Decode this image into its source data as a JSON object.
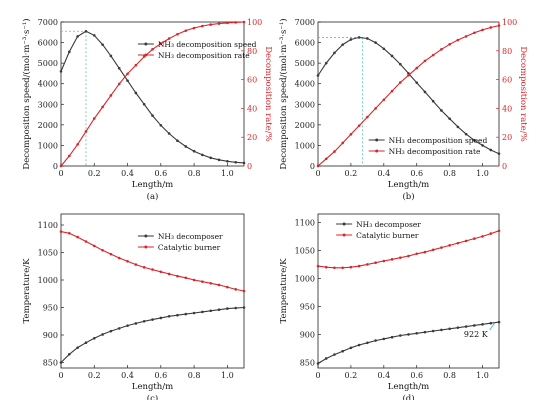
{
  "colors": {
    "black_series": "#3a3a3a",
    "red_series": "#d9262b",
    "dash_marker": "#56c1b7"
  },
  "chart_data": [
    {
      "id": "a",
      "type": "line",
      "panel_label": "(a)",
      "xlabel": "Length/m",
      "ylabel_left": "Decomposition speed/(mol·m⁻³·s⁻¹)",
      "ylabel_right": "Decomposition rate/%",
      "xlim": [
        0,
        1.1
      ],
      "ylim_left": [
        0,
        7000
      ],
      "ylim_right": [
        0,
        100
      ],
      "xticks": [
        "0",
        "0.2",
        "0.4",
        "0.6",
        "0.8",
        "1.0"
      ],
      "yticks_left": [
        "0",
        "1000",
        "2000",
        "3000",
        "4000",
        "5000",
        "6000",
        "7000"
      ],
      "yticks_right": [
        "0",
        "20",
        "40",
        "60",
        "80",
        "100"
      ],
      "legend_position": "upper-right",
      "peak_marker_x": 0.15,
      "series": [
        {
          "name": "NH₃ decomposition speed",
          "axis": "left",
          "color": "black",
          "x": [
            0,
            0.05,
            0.1,
            0.15,
            0.2,
            0.25,
            0.3,
            0.35,
            0.4,
            0.45,
            0.5,
            0.55,
            0.6,
            0.65,
            0.7,
            0.75,
            0.8,
            0.85,
            0.9,
            0.95,
            1.0,
            1.05,
            1.1
          ],
          "values": [
            4600,
            5550,
            6300,
            6550,
            6350,
            5900,
            5350,
            4750,
            4150,
            3550,
            3000,
            2450,
            1980,
            1580,
            1230,
            950,
            720,
            540,
            400,
            300,
            230,
            180,
            150
          ]
        },
        {
          "name": "NH₃ decomposition rate",
          "axis": "right",
          "color": "red",
          "x": [
            0,
            0.05,
            0.1,
            0.15,
            0.2,
            0.25,
            0.3,
            0.35,
            0.4,
            0.45,
            0.5,
            0.55,
            0.6,
            0.65,
            0.7,
            0.75,
            0.8,
            0.85,
            0.9,
            0.95,
            1.0,
            1.05,
            1.1
          ],
          "values": [
            0,
            7,
            15,
            24,
            33,
            41,
            49,
            57,
            64,
            70,
            76,
            81,
            85,
            88.5,
            91.5,
            94,
            95.8,
            97.2,
            98.2,
            98.9,
            99.4,
            99.7,
            100
          ]
        }
      ]
    },
    {
      "id": "b",
      "type": "line",
      "panel_label": "(b)",
      "xlabel": "Length/m",
      "ylabel_left": "Decomposition speed/(mol·m⁻³·s⁻¹)",
      "ylabel_right": "Decomposition rate/%",
      "xlim": [
        0,
        1.1
      ],
      "ylim_left": [
        0,
        7000
      ],
      "ylim_right": [
        0,
        100
      ],
      "xticks": [
        "0",
        "0.2",
        "0.4",
        "0.6",
        "0.8",
        "1.0"
      ],
      "yticks_left": [
        "0",
        "1000",
        "2000",
        "3000",
        "4000",
        "5000",
        "6000",
        "7000"
      ],
      "yticks_right": [
        "0",
        "20",
        "40",
        "60",
        "80",
        "100"
      ],
      "legend_position": "lower-center",
      "peak_marker_x": 0.27,
      "series": [
        {
          "name": "NH₃ decomposition speed",
          "axis": "left",
          "color": "black",
          "x": [
            0,
            0.05,
            0.1,
            0.15,
            0.2,
            0.25,
            0.3,
            0.35,
            0.4,
            0.45,
            0.5,
            0.55,
            0.6,
            0.65,
            0.7,
            0.75,
            0.8,
            0.85,
            0.9,
            0.95,
            1.0,
            1.05,
            1.1
          ],
          "values": [
            4400,
            5000,
            5500,
            5900,
            6150,
            6250,
            6200,
            6000,
            5700,
            5350,
            4950,
            4500,
            4050,
            3600,
            3150,
            2700,
            2300,
            1900,
            1550,
            1250,
            1000,
            780,
            600
          ]
        },
        {
          "name": "NH₃ decomposition rate",
          "axis": "right",
          "color": "red",
          "x": [
            0,
            0.05,
            0.1,
            0.15,
            0.2,
            0.25,
            0.3,
            0.35,
            0.4,
            0.45,
            0.5,
            0.55,
            0.6,
            0.65,
            0.7,
            0.75,
            0.8,
            0.85,
            0.9,
            0.95,
            1.0,
            1.05,
            1.1
          ],
          "values": [
            0,
            5,
            10,
            16,
            22,
            28,
            34,
            40,
            46,
            52,
            58,
            63,
            68,
            73,
            77,
            81,
            84.5,
            87.5,
            90,
            92.5,
            94.5,
            96.2,
            97.5
          ]
        }
      ]
    },
    {
      "id": "c",
      "type": "line",
      "panel_label": "(c)",
      "xlabel": "Length/m",
      "ylabel_left": "Temperature/K",
      "xlim": [
        0,
        1.1
      ],
      "ylim_left": [
        840,
        1120
      ],
      "xticks": [
        "0",
        "0.2",
        "0.4",
        "0.6",
        "0.8",
        "1.0"
      ],
      "yticks_left": [
        "850",
        "900",
        "950",
        "1000",
        "1050",
        "1100"
      ],
      "yticks_left_values": [
        850,
        900,
        950,
        1000,
        1050,
        1100
      ],
      "legend_position": "upper-right",
      "series": [
        {
          "name": "NH₃ decomposer",
          "axis": "left",
          "color": "black",
          "x": [
            0,
            0.05,
            0.1,
            0.15,
            0.2,
            0.25,
            0.3,
            0.35,
            0.4,
            0.45,
            0.5,
            0.55,
            0.6,
            0.65,
            0.7,
            0.75,
            0.8,
            0.85,
            0.9,
            0.95,
            1.0,
            1.05,
            1.1
          ],
          "values": [
            850,
            865,
            877,
            886,
            894,
            901,
            907,
            912,
            917,
            921,
            925,
            928,
            931,
            934,
            936,
            938,
            940,
            942,
            944,
            946,
            948,
            949,
            950
          ]
        },
        {
          "name": "Catalytic burner",
          "axis": "left",
          "color": "red",
          "x": [
            0,
            0.05,
            0.1,
            0.15,
            0.2,
            0.25,
            0.3,
            0.35,
            0.4,
            0.45,
            0.5,
            0.55,
            0.6,
            0.65,
            0.7,
            0.75,
            0.8,
            0.85,
            0.9,
            0.95,
            1.0,
            1.05,
            1.1
          ],
          "values": [
            1088,
            1085,
            1078,
            1070,
            1062,
            1054,
            1047,
            1040,
            1034,
            1028,
            1023,
            1019,
            1015,
            1011,
            1007,
            1004,
            1000,
            997,
            994,
            991,
            987,
            983,
            980
          ]
        }
      ]
    },
    {
      "id": "d",
      "type": "line",
      "panel_label": "(d)",
      "xlabel": "Length/m",
      "ylabel_left": "Temperature/K",
      "xlim": [
        0,
        1.1
      ],
      "ylim_left": [
        840,
        1115
      ],
      "xticks": [
        "0",
        "0.2",
        "0.4",
        "0.6",
        "0.8",
        "1.0"
      ],
      "yticks_left": [
        "850",
        "900",
        "950",
        "1000",
        "1050",
        "1100"
      ],
      "yticks_left_values": [
        850,
        900,
        950,
        1000,
        1050,
        1100
      ],
      "legend_position": "upper-left",
      "annotation": "922 K",
      "annotation_point": [
        1.08,
        922
      ],
      "series": [
        {
          "name": "NH₃ decomposer",
          "axis": "left",
          "color": "black",
          "x": [
            0,
            0.05,
            0.1,
            0.15,
            0.2,
            0.25,
            0.3,
            0.35,
            0.4,
            0.45,
            0.5,
            0.55,
            0.6,
            0.65,
            0.7,
            0.75,
            0.8,
            0.85,
            0.9,
            0.95,
            1.0,
            1.05,
            1.1
          ],
          "values": [
            848,
            857,
            864,
            870,
            876,
            881,
            885,
            889,
            892,
            895,
            898,
            900,
            902,
            904,
            906,
            908,
            910,
            912,
            914,
            916,
            918,
            920,
            922
          ]
        },
        {
          "name": "Catalytic burner",
          "axis": "left",
          "color": "red",
          "x": [
            0,
            0.05,
            0.1,
            0.15,
            0.2,
            0.25,
            0.3,
            0.35,
            0.4,
            0.45,
            0.5,
            0.55,
            0.6,
            0.65,
            0.7,
            0.75,
            0.8,
            0.85,
            0.9,
            0.95,
            1.0,
            1.05,
            1.1
          ],
          "values": [
            1022,
            1020,
            1019,
            1019,
            1020,
            1022,
            1025,
            1028,
            1031,
            1034,
            1037,
            1040,
            1044,
            1047,
            1051,
            1055,
            1059,
            1063,
            1067,
            1071,
            1075,
            1080,
            1085
          ]
        }
      ]
    }
  ]
}
